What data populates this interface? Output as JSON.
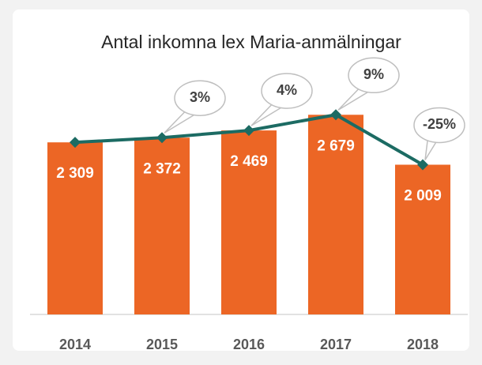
{
  "chart_data": {
    "type": "bar",
    "title": "Antal inkomna lex Maria-anmälningar",
    "categories": [
      "2014",
      "2015",
      "2016",
      "2017",
      "2018"
    ],
    "ylim": [
      0,
      3000
    ],
    "series": [
      {
        "type": "bar",
        "color": "#ec6625",
        "values": [
          2309,
          2372,
          2469,
          2679,
          2009
        ],
        "value_labels": [
          "2 309",
          "2 372",
          "2 469",
          "2 679",
          "2 009"
        ]
      },
      {
        "type": "line",
        "color": "#1c6b63",
        "values": [
          2309,
          2372,
          2469,
          2679,
          2009
        ]
      }
    ],
    "annotations": {
      "values": [
        null,
        3,
        4,
        9,
        -25
      ],
      "value_labels": [
        null,
        "3%",
        "4%",
        "9%",
        "-25%"
      ]
    }
  }
}
